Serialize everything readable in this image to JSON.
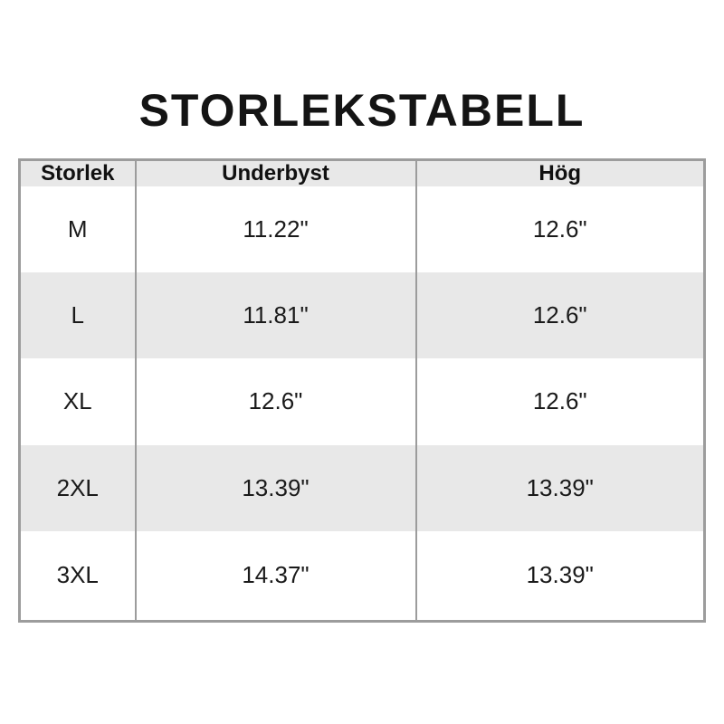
{
  "page": {
    "title": "STORLEKSTABELL"
  },
  "table": {
    "headers": [
      "Storlek",
      "Underbyst",
      "Hög"
    ],
    "rows": [
      [
        "M",
        "11.22\"",
        "12.6\""
      ],
      [
        "L",
        "11.81\"",
        "12.6\""
      ],
      [
        "XL",
        "12.6\"",
        "12.6\""
      ],
      [
        "2XL",
        "13.39\"",
        "13.39\""
      ],
      [
        "3XL",
        "14.37\"",
        "13.39\""
      ]
    ]
  },
  "chart_data": {
    "type": "table",
    "title": "STORLEKSTABELL",
    "columns": [
      "Storlek",
      "Underbyst",
      "Hög"
    ],
    "rows": [
      {
        "storlek": "M",
        "underbyst_in": 11.22,
        "hog_in": 12.6
      },
      {
        "storlek": "L",
        "underbyst_in": 11.81,
        "hog_in": 12.6
      },
      {
        "storlek": "XL",
        "underbyst_in": 12.6,
        "hog_in": 12.6
      },
      {
        "storlek": "2XL",
        "underbyst_in": 13.39,
        "hog_in": 13.39
      },
      {
        "storlek": "3XL",
        "underbyst_in": 14.37,
        "hog_in": 13.39
      }
    ],
    "unit": "inches",
    "layout": {
      "header_shaded": true,
      "zebra_striping": true
    }
  },
  "colors": {
    "background": "#ffffff",
    "row_shade": "#e8e8e8",
    "border": "#9c9c9c",
    "title_text": "#141414",
    "body_text": "#1a1a1a"
  }
}
